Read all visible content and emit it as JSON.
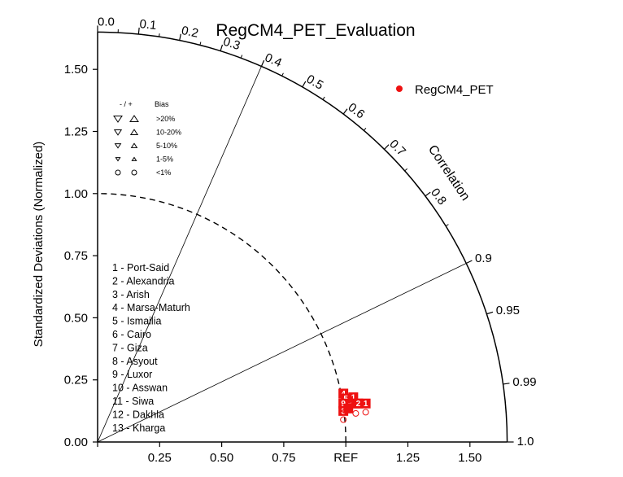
{
  "chart_data": {
    "type": "scatter",
    "subtype": "taylor-diagram",
    "title": "RegCM4_PET_Evaluation",
    "ylabel": "Standardized Deviations (Normalized)",
    "correlation_label": "Correlation",
    "ref_label": "REF",
    "std_range": [
      0,
      1.65
    ],
    "x_ticks": [
      "0.00",
      "0.25",
      "0.50",
      "0.75",
      "REF",
      "1.25",
      "1.50"
    ],
    "y_ticks": [
      "0.00",
      "0.25",
      "0.50",
      "0.75",
      "1.00",
      "1.25",
      "1.50"
    ],
    "corr_ticks": [
      "0.0",
      "0.1",
      "0.2",
      "0.3",
      "0.4",
      "0.5",
      "0.6",
      "0.7",
      "0.8",
      "0.9",
      "0.95",
      "0.99",
      "1.0"
    ],
    "legend": {
      "marker_color": "#ee1111",
      "name": "RegCM4_PET",
      "position": "top-right"
    },
    "bias_legend": {
      "header": [
        "- / +",
        "Bias"
      ],
      "rows": [
        ">20%",
        "10-20%",
        "5-10%",
        "1-5%",
        "<1%"
      ]
    },
    "stations": [
      "1 - Port-Said",
      "2 - Alexandria",
      "3 - Arish",
      "4 - Marsa-Maturh",
      "5 - Ismailia",
      "6 - Cairo",
      "7 - Giza",
      "8 - Asyout",
      "9 - Luxor",
      "10 - Asswan",
      "11 - Siwa",
      "12 - Dakhla",
      "13 - Kharga"
    ],
    "points": [
      {
        "label": "4",
        "x": 0.99,
        "y": 0.195
      },
      {
        "label": "5",
        "x": 1.0,
        "y": 0.175
      },
      {
        "label": "1",
        "x": 1.03,
        "y": 0.18
      },
      {
        "label": "9",
        "x": 0.99,
        "y": 0.155
      },
      {
        "label": "1",
        "x": 1.04,
        "y": 0.155
      },
      {
        "label": "2",
        "x": 1.05,
        "y": 0.155
      },
      {
        "label": "1",
        "x": 1.08,
        "y": 0.155
      },
      {
        "label": "3",
        "x": 0.99,
        "y": 0.125
      },
      {
        "label": "",
        "x": 1.01,
        "y": 0.135
      }
    ],
    "open_circles": [
      {
        "x": 0.99,
        "y": 0.09
      },
      {
        "x": 1.04,
        "y": 0.115
      },
      {
        "x": 1.08,
        "y": 0.12
      }
    ]
  }
}
